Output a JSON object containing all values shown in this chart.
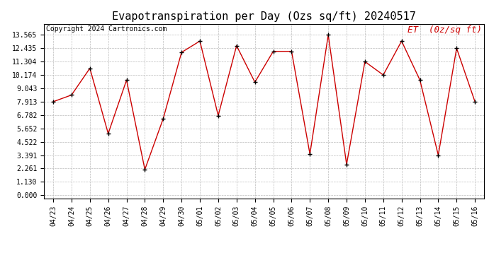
{
  "title": "Evapotranspiration per Day (Ozs sq/ft) 20240517",
  "copyright": "Copyright 2024 Cartronics.com",
  "legend_label": "ET  (0z/sq ft)",
  "dates": [
    "04/23",
    "04/24",
    "04/25",
    "04/26",
    "04/27",
    "04/28",
    "04/29",
    "04/30",
    "05/01",
    "05/02",
    "05/03",
    "05/04",
    "05/05",
    "05/06",
    "05/07",
    "05/08",
    "05/09",
    "05/10",
    "05/11",
    "05/12",
    "05/13",
    "05/14",
    "05/15",
    "05/16"
  ],
  "values": [
    7.913,
    8.478,
    10.739,
    5.217,
    9.739,
    2.174,
    6.478,
    12.087,
    13.043,
    6.739,
    12.652,
    9.565,
    12.174,
    12.174,
    3.478,
    13.565,
    2.609,
    11.304,
    10.174,
    13.043,
    9.739,
    3.391,
    12.435,
    7.913
  ],
  "line_color": "#cc0000",
  "marker_color": "#000000",
  "background_color": "#ffffff",
  "grid_color": "#bbbbbb",
  "title_fontsize": 11,
  "copyright_fontsize": 7,
  "legend_fontsize": 9,
  "tick_fontsize": 7,
  "yticks": [
    0.0,
    1.13,
    2.261,
    3.391,
    4.522,
    5.652,
    6.782,
    7.913,
    9.043,
    10.174,
    11.304,
    12.435,
    13.565
  ],
  "ylim": [
    -0.3,
    14.5
  ],
  "title_color": "#000000",
  "legend_color": "#cc0000"
}
